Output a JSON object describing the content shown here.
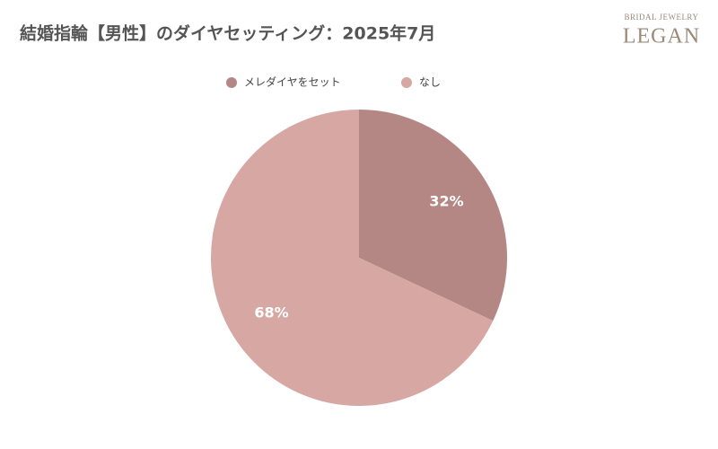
{
  "chart_data": {
    "type": "pie",
    "title": "結婚指輪【男性】のダイヤセッティング：2025年7月",
    "logo": {
      "top": "BRIDAL JEWELRY",
      "main": "LEGAN"
    },
    "categories": [
      "メレダイヤをセット",
      "なし"
    ],
    "values": [
      32,
      68
    ],
    "value_labels": [
      "32%",
      "68%"
    ],
    "colors": [
      "#b58784",
      "#d7a7a4"
    ],
    "legend": "top"
  }
}
